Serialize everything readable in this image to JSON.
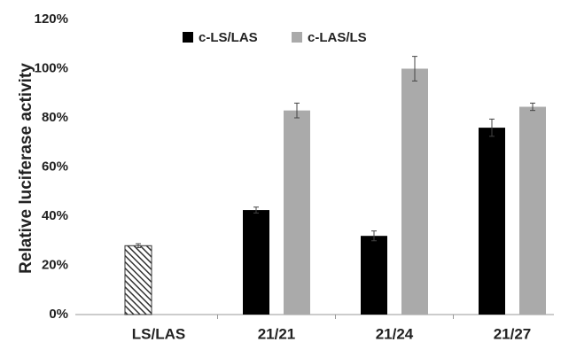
{
  "chart_data": {
    "type": "bar",
    "y_label": "Relative luciferase activity",
    "categories": [
      "LS/LAS",
      "21/21",
      "21/24",
      "21/27"
    ],
    "series": [
      {
        "hatch": true,
        "color": "#333333",
        "values": [
          28,
          null,
          null,
          null
        ],
        "errors": [
          0.8,
          null,
          null,
          null
        ]
      },
      {
        "name": "c-LS/LAS",
        "color": "#000000",
        "values": [
          null,
          42.5,
          32,
          76
        ],
        "errors": [
          null,
          1.2,
          2,
          3.5
        ]
      },
      {
        "name": "c-LAS/LS",
        "color": "#aaaaaa",
        "values": [
          null,
          83,
          100,
          84.5
        ],
        "errors": [
          null,
          3,
          5,
          1.5
        ]
      }
    ],
    "ylim": [
      0,
      120
    ],
    "yticks": [
      {
        "value": 0,
        "label": "0%"
      },
      {
        "value": 20,
        "label": "20%"
      },
      {
        "value": 40,
        "label": "40%"
      },
      {
        "value": 60,
        "label": "60%"
      },
      {
        "value": 80,
        "label": "80%"
      },
      {
        "value": 100,
        "label": "100%"
      },
      {
        "value": 120,
        "label": "120%"
      }
    ],
    "grid": false,
    "legend": "top"
  }
}
